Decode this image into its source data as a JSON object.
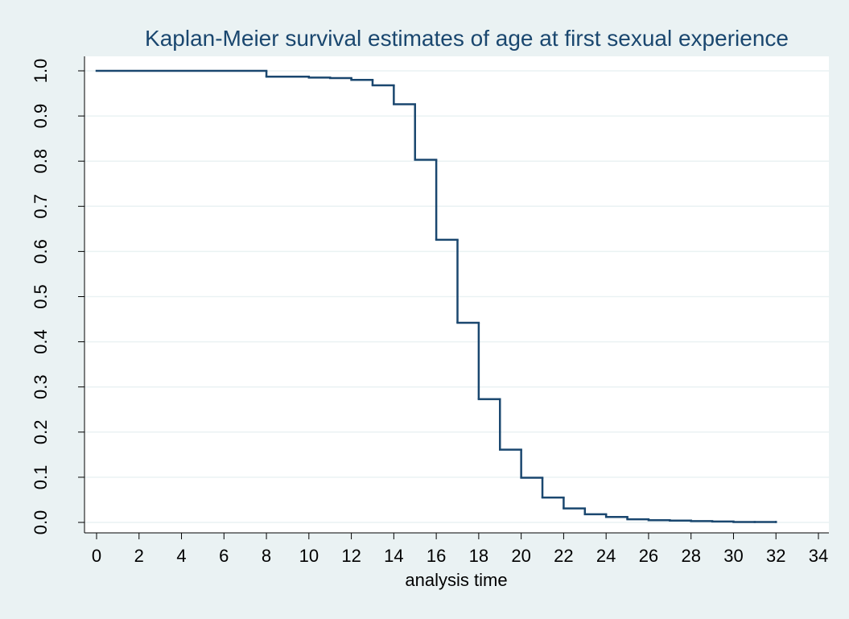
{
  "chart_data": {
    "type": "step",
    "title": "Kaplan-Meier survival estimates of age at first sexual experience",
    "x_label": "analysis time",
    "color": "#1a476f",
    "x": [
      0,
      8,
      10,
      11,
      12,
      13,
      14,
      15,
      16,
      17,
      18,
      19,
      20,
      21,
      22,
      23,
      24,
      25,
      26,
      27,
      28,
      29,
      30,
      31,
      32
    ],
    "values": [
      1.0,
      0.987,
      0.985,
      0.984,
      0.98,
      0.968,
      0.926,
      0.803,
      0.626,
      0.442,
      0.273,
      0.161,
      0.099,
      0.055,
      0.031,
      0.018,
      0.012,
      0.007,
      0.005,
      0.004,
      0.003,
      0.002,
      0.001,
      0.001,
      0.001
    ],
    "xlim": [
      0,
      34
    ],
    "xticks": [
      0,
      2,
      4,
      6,
      8,
      10,
      12,
      14,
      16,
      18,
      20,
      22,
      24,
      26,
      28,
      30,
      32,
      34
    ],
    "ylim": [
      0,
      1
    ],
    "yticks": [
      {
        "value": 0,
        "label": "0.0"
      },
      0.1,
      0.2,
      0.3,
      0.4,
      0.5,
      0.6,
      0.7,
      0.8,
      0.9,
      {
        "value": 1,
        "label": "1.0"
      }
    ],
    "grid": true
  }
}
